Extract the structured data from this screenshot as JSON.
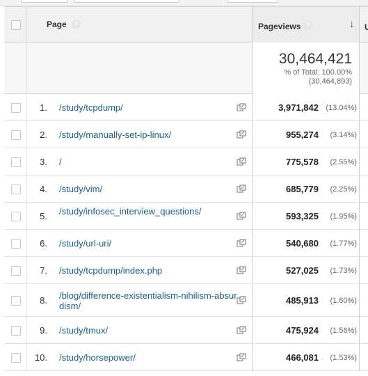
{
  "header": {
    "page_label": "Page",
    "pageviews_label": "Pageviews",
    "help_glyph": "?",
    "sort_glyph": "↓"
  },
  "totals": {
    "value": "30,464,421",
    "percent_line": "% of Total: 100.00%",
    "raw_line": "(30,464,893)"
  },
  "rows": [
    {
      "index": "1.",
      "path": "/study/tcpdump/",
      "pageviews": "3,971,842",
      "percent": "(13.04%)"
    },
    {
      "index": "2.",
      "path": "/study/manually-set-ip-linux/",
      "pageviews": "955,274",
      "percent": "(3.14%)"
    },
    {
      "index": "3.",
      "path": "/",
      "pageviews": "775,578",
      "percent": "(2.55%)"
    },
    {
      "index": "4.",
      "path": "/study/vim/",
      "pageviews": "685,779",
      "percent": "(2.25%)"
    },
    {
      "index": "5.",
      "path": "/study/infosec_interview_questions/",
      "pageviews": "593,325",
      "percent": "(1.95%)"
    },
    {
      "index": "6.",
      "path": "/study/url-uri/",
      "pageviews": "540,680",
      "percent": "(1.77%)"
    },
    {
      "index": "7.",
      "path": "/study/tcpdump/index.php",
      "pageviews": "527,025",
      "percent": "(1.73%)"
    },
    {
      "index": "8.",
      "path": "/blog/difference-existentialism-nihilism-absurdism/",
      "pageviews": "485,913",
      "percent": "(1.60%)"
    },
    {
      "index": "9.",
      "path": "/study/tmux/",
      "pageviews": "475,924",
      "percent": "(1.56%)"
    },
    {
      "index": "10.",
      "path": "/study/horsepower/",
      "pageviews": "466,081",
      "percent": "(1.53%)"
    }
  ],
  "icons": {
    "row_link": "external-link-icon",
    "help": "help-icon",
    "sort": "sort-descending-icon"
  },
  "colors": {
    "link": "#1a5e8a",
    "header_bg": "#f1f1f1",
    "border": "#cfcfcf"
  }
}
